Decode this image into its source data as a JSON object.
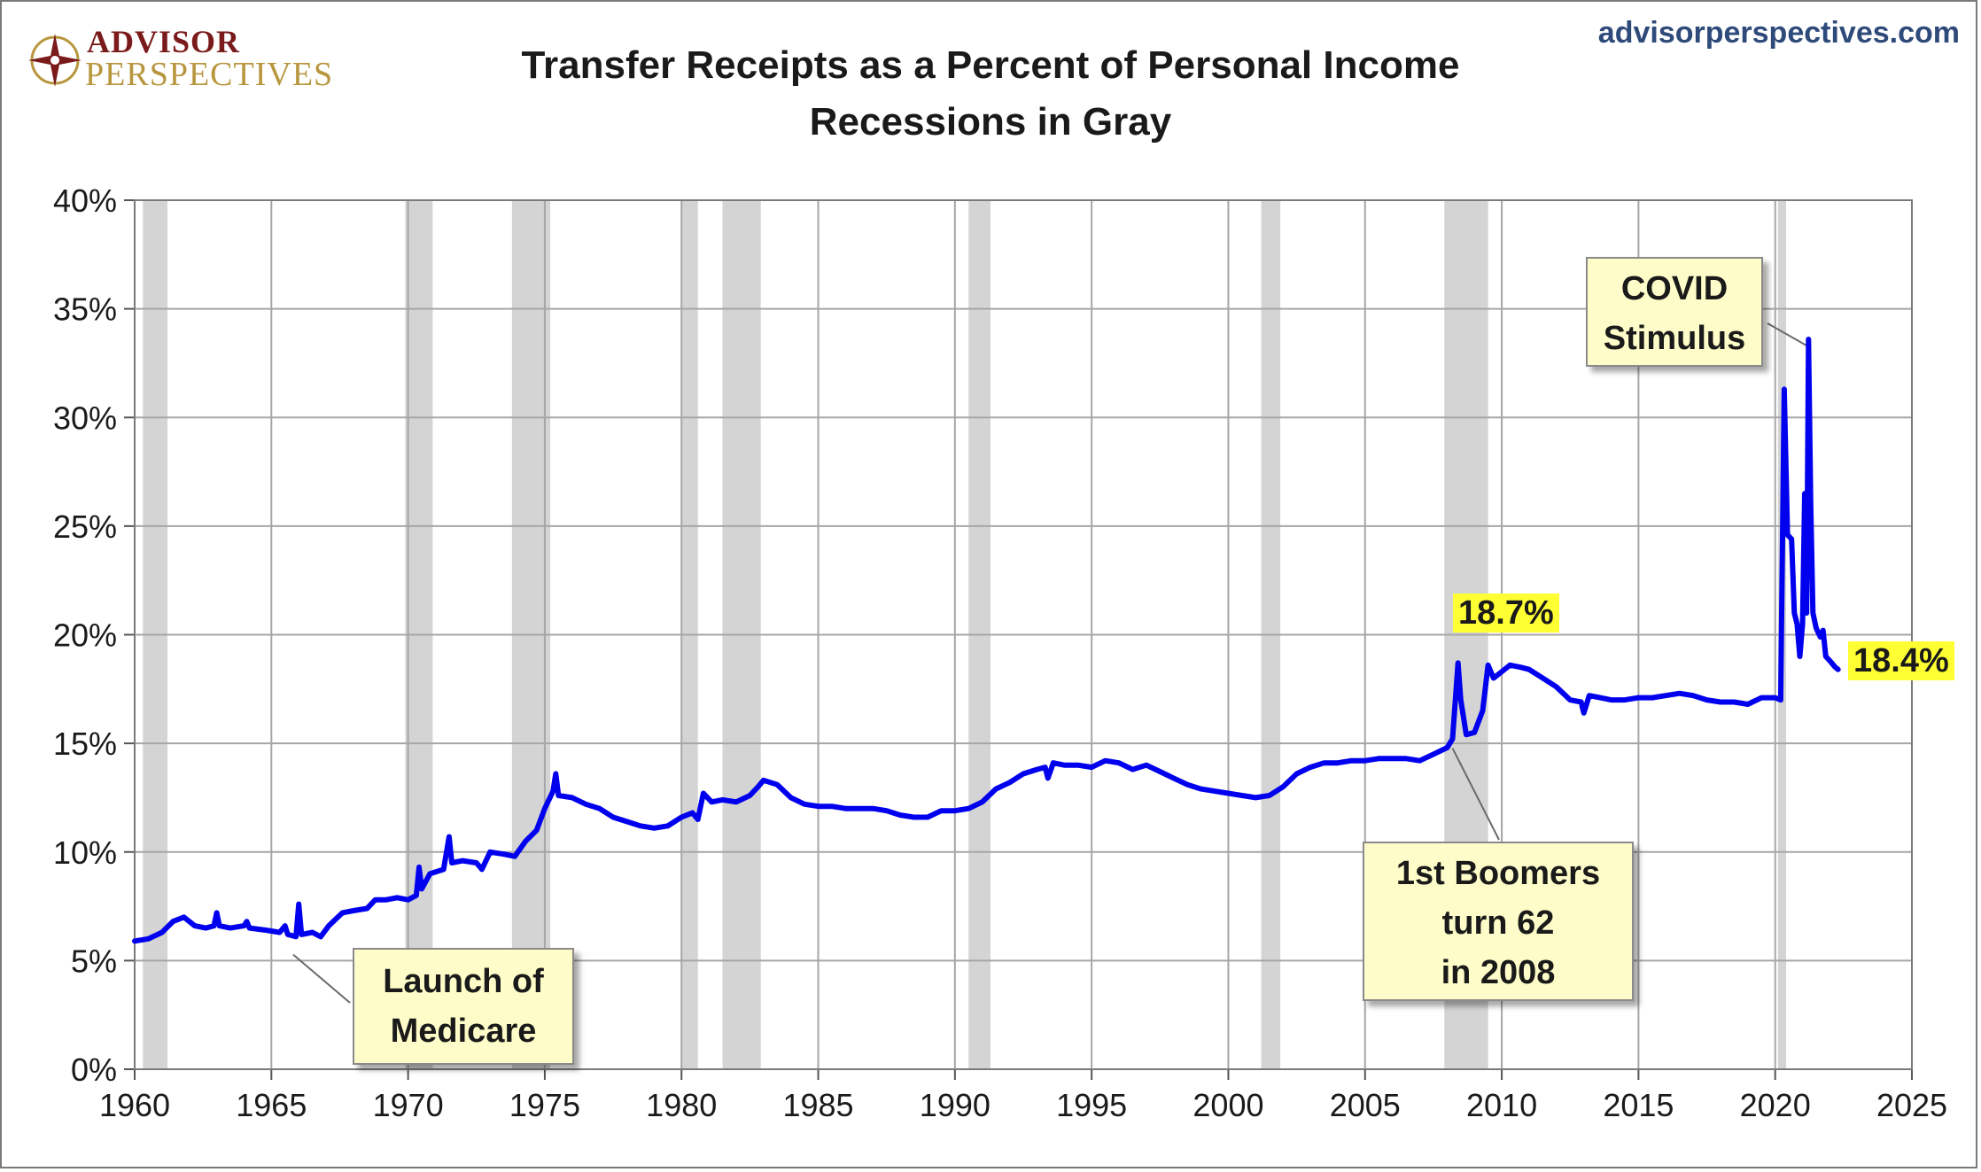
{
  "logo": {
    "line1": "ADVISOR",
    "line2": "PERSPECTIVES",
    "icon": "compass-star-icon"
  },
  "site_url": "advisorperspectives.com",
  "colors": {
    "series": "#0000ee",
    "recession": "#d4d4d4",
    "grid": "#a6a6a6",
    "annotation_bg": "#fefcc8",
    "highlight": "#ffff33",
    "logo_red": "#7a1a1a",
    "logo_gold": "#b8963e",
    "site_blue": "#2e4a7a"
  },
  "annotations": {
    "covid": [
      "COVID",
      "Stimulus"
    ],
    "boomers": [
      "1st Boomers",
      "turn 62",
      "in 2008"
    ],
    "medicare": [
      "Launch of",
      "Medicare"
    ],
    "peak_label": "18.7%",
    "last_label": "18.4%"
  },
  "chart_data": {
    "type": "line",
    "title": "Transfer Receipts as a Percent of Personal Income",
    "subtitle": "Recessions in Gray",
    "xlabel": "",
    "ylabel": "",
    "xlim": [
      1960,
      2025
    ],
    "ylim": [
      0,
      40
    ],
    "x_ticks": [
      "1960",
      "1965",
      "1970",
      "1975",
      "1980",
      "1985",
      "1990",
      "1995",
      "2000",
      "2005",
      "2010",
      "2015",
      "2020",
      "2025"
    ],
    "y_ticks": [
      "0%",
      "5%",
      "10%",
      "15%",
      "20%",
      "25%",
      "30%",
      "35%",
      "40%"
    ],
    "grid": true,
    "legend": "none",
    "recessions": [
      [
        1960.3,
        1961.2
      ],
      [
        1969.9,
        1970.9
      ],
      [
        1973.8,
        1975.2
      ],
      [
        1980.0,
        1980.6
      ],
      [
        1981.5,
        1982.9
      ],
      [
        1990.5,
        1991.3
      ],
      [
        2001.2,
        2001.9
      ],
      [
        2007.9,
        2009.5
      ],
      [
        2020.1,
        2020.4
      ]
    ],
    "series": [
      {
        "points": [
          [
            1960.0,
            5.9
          ],
          [
            1960.5,
            6.0
          ],
          [
            1961.0,
            6.3
          ],
          [
            1961.4,
            6.8
          ],
          [
            1961.8,
            7.0
          ],
          [
            1962.2,
            6.6
          ],
          [
            1962.6,
            6.5
          ],
          [
            1962.9,
            6.6
          ],
          [
            1963.0,
            7.2
          ],
          [
            1963.1,
            6.6
          ],
          [
            1963.5,
            6.5
          ],
          [
            1964.0,
            6.6
          ],
          [
            1964.1,
            6.8
          ],
          [
            1964.2,
            6.5
          ],
          [
            1964.8,
            6.4
          ],
          [
            1965.3,
            6.3
          ],
          [
            1965.5,
            6.6
          ],
          [
            1965.6,
            6.2
          ],
          [
            1965.9,
            6.1
          ],
          [
            1966.0,
            7.6
          ],
          [
            1966.1,
            6.2
          ],
          [
            1966.5,
            6.3
          ],
          [
            1966.8,
            6.1
          ],
          [
            1967.1,
            6.6
          ],
          [
            1967.6,
            7.2
          ],
          [
            1968.0,
            7.3
          ],
          [
            1968.5,
            7.4
          ],
          [
            1968.8,
            7.8
          ],
          [
            1969.2,
            7.8
          ],
          [
            1969.6,
            7.9
          ],
          [
            1970.0,
            7.8
          ],
          [
            1970.3,
            8.0
          ],
          [
            1970.4,
            9.3
          ],
          [
            1970.5,
            8.3
          ],
          [
            1970.8,
            9.0
          ],
          [
            1971.3,
            9.2
          ],
          [
            1971.5,
            10.7
          ],
          [
            1971.6,
            9.5
          ],
          [
            1972.0,
            9.6
          ],
          [
            1972.5,
            9.5
          ],
          [
            1972.7,
            9.2
          ],
          [
            1973.0,
            10.0
          ],
          [
            1973.5,
            9.9
          ],
          [
            1973.9,
            9.8
          ],
          [
            1974.3,
            10.5
          ],
          [
            1974.7,
            11.0
          ],
          [
            1975.0,
            12.0
          ],
          [
            1975.3,
            12.8
          ],
          [
            1975.4,
            13.6
          ],
          [
            1975.5,
            12.6
          ],
          [
            1976.0,
            12.5
          ],
          [
            1976.5,
            12.2
          ],
          [
            1977.0,
            12.0
          ],
          [
            1977.5,
            11.6
          ],
          [
            1978.0,
            11.4
          ],
          [
            1978.5,
            11.2
          ],
          [
            1979.0,
            11.1
          ],
          [
            1979.5,
            11.2
          ],
          [
            1980.0,
            11.6
          ],
          [
            1980.4,
            11.8
          ],
          [
            1980.6,
            11.5
          ],
          [
            1980.8,
            12.7
          ],
          [
            1981.1,
            12.3
          ],
          [
            1981.5,
            12.4
          ],
          [
            1982.0,
            12.3
          ],
          [
            1982.5,
            12.6
          ],
          [
            1982.8,
            13.0
          ],
          [
            1983.0,
            13.3
          ],
          [
            1983.5,
            13.1
          ],
          [
            1984.0,
            12.5
          ],
          [
            1984.5,
            12.2
          ],
          [
            1985.0,
            12.1
          ],
          [
            1985.5,
            12.1
          ],
          [
            1986.0,
            12.0
          ],
          [
            1986.5,
            12.0
          ],
          [
            1987.0,
            12.0
          ],
          [
            1987.5,
            11.9
          ],
          [
            1988.0,
            11.7
          ],
          [
            1988.5,
            11.6
          ],
          [
            1989.0,
            11.6
          ],
          [
            1989.5,
            11.9
          ],
          [
            1990.0,
            11.9
          ],
          [
            1990.5,
            12.0
          ],
          [
            1991.0,
            12.3
          ],
          [
            1991.5,
            12.9
          ],
          [
            1992.0,
            13.2
          ],
          [
            1992.5,
            13.6
          ],
          [
            1993.0,
            13.8
          ],
          [
            1993.3,
            13.9
          ],
          [
            1993.4,
            13.4
          ],
          [
            1993.6,
            14.1
          ],
          [
            1994.0,
            14.0
          ],
          [
            1994.5,
            14.0
          ],
          [
            1995.0,
            13.9
          ],
          [
            1995.5,
            14.2
          ],
          [
            1996.0,
            14.1
          ],
          [
            1996.5,
            13.8
          ],
          [
            1997.0,
            14.0
          ],
          [
            1997.5,
            13.7
          ],
          [
            1998.0,
            13.4
          ],
          [
            1998.5,
            13.1
          ],
          [
            1999.0,
            12.9
          ],
          [
            1999.5,
            12.8
          ],
          [
            2000.0,
            12.7
          ],
          [
            2000.5,
            12.6
          ],
          [
            2001.0,
            12.5
          ],
          [
            2001.5,
            12.6
          ],
          [
            2002.0,
            13.0
          ],
          [
            2002.5,
            13.6
          ],
          [
            2003.0,
            13.9
          ],
          [
            2003.5,
            14.1
          ],
          [
            2004.0,
            14.1
          ],
          [
            2004.5,
            14.2
          ],
          [
            2005.0,
            14.2
          ],
          [
            2005.5,
            14.3
          ],
          [
            2006.0,
            14.3
          ],
          [
            2006.5,
            14.3
          ],
          [
            2007.0,
            14.2
          ],
          [
            2007.5,
            14.5
          ],
          [
            2008.0,
            14.8
          ],
          [
            2008.2,
            15.2
          ],
          [
            2008.4,
            18.7
          ],
          [
            2008.5,
            17.0
          ],
          [
            2008.7,
            15.4
          ],
          [
            2009.0,
            15.5
          ],
          [
            2009.3,
            16.5
          ],
          [
            2009.5,
            18.6
          ],
          [
            2009.7,
            18.0
          ],
          [
            2010.0,
            18.3
          ],
          [
            2010.3,
            18.6
          ],
          [
            2010.7,
            18.5
          ],
          [
            2011.0,
            18.4
          ],
          [
            2011.5,
            18.0
          ],
          [
            2012.0,
            17.6
          ],
          [
            2012.5,
            17.0
          ],
          [
            2012.9,
            16.9
          ],
          [
            2013.0,
            16.4
          ],
          [
            2013.2,
            17.2
          ],
          [
            2013.6,
            17.1
          ],
          [
            2014.0,
            17.0
          ],
          [
            2014.5,
            17.0
          ],
          [
            2015.0,
            17.1
          ],
          [
            2015.5,
            17.1
          ],
          [
            2016.0,
            17.2
          ],
          [
            2016.5,
            17.3
          ],
          [
            2017.0,
            17.2
          ],
          [
            2017.5,
            17.0
          ],
          [
            2018.0,
            16.9
          ],
          [
            2018.5,
            16.9
          ],
          [
            2019.0,
            16.8
          ],
          [
            2019.5,
            17.1
          ],
          [
            2020.0,
            17.1
          ],
          [
            2020.2,
            17.0
          ],
          [
            2020.33,
            31.3
          ],
          [
            2020.45,
            24.6
          ],
          [
            2020.6,
            24.4
          ],
          [
            2020.7,
            21.0
          ],
          [
            2020.8,
            20.5
          ],
          [
            2020.9,
            19.0
          ],
          [
            2021.0,
            20.5
          ],
          [
            2021.08,
            26.5
          ],
          [
            2021.15,
            21.0
          ],
          [
            2021.22,
            33.6
          ],
          [
            2021.3,
            26.0
          ],
          [
            2021.38,
            21.0
          ],
          [
            2021.5,
            20.3
          ],
          [
            2021.65,
            19.9
          ],
          [
            2021.75,
            20.2
          ],
          [
            2021.85,
            19.0
          ],
          [
            2022.0,
            18.8
          ],
          [
            2022.2,
            18.5
          ],
          [
            2022.3,
            18.4
          ]
        ]
      }
    ]
  }
}
